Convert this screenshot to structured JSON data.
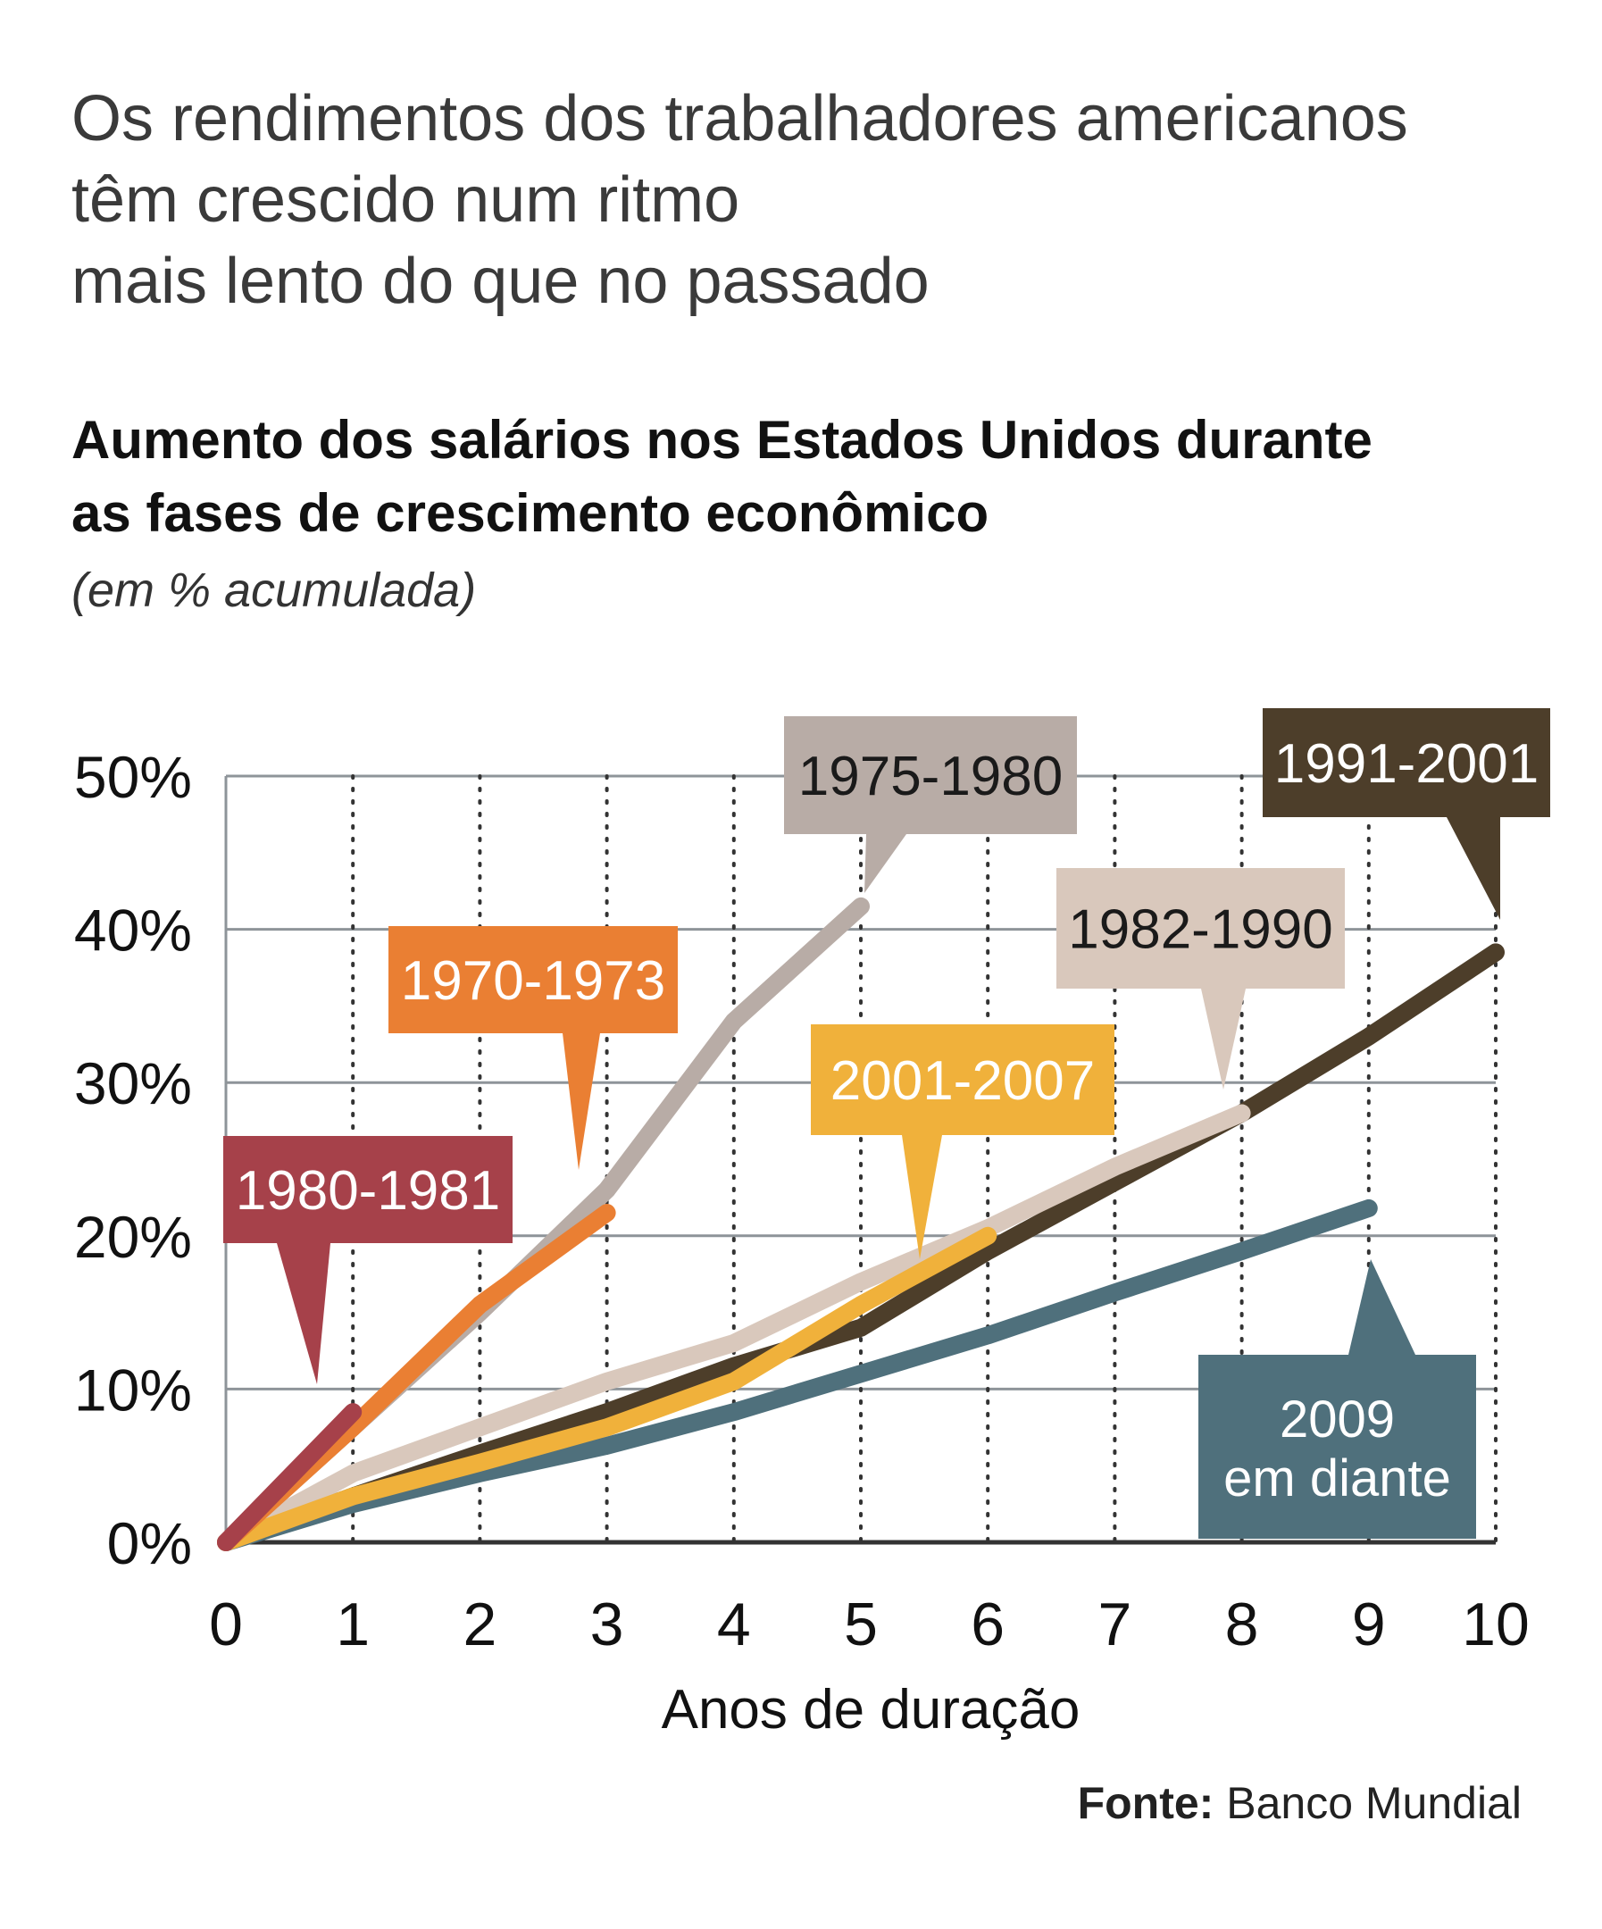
{
  "headline": [
    "Os rendimentos dos trabalhadores americanos",
    "têm crescido num ritmo",
    "mais lento do que no passado"
  ],
  "subtitle": [
    "Aumento dos salários nos Estados Unidos durante",
    "as fases de crescimento econômico"
  ],
  "unit_label": "(em % acumulada)",
  "source": {
    "label": "Fonte:",
    "value": "Banco Mundial"
  },
  "chart_data": {
    "type": "line",
    "title": "Aumento dos salários nos Estados Unidos durante as fases de crescimento econômico",
    "xlabel": "Anos de duração",
    "ylabel": "(em % acumulada)",
    "xlim": [
      0,
      10
    ],
    "ylim": [
      0,
      50
    ],
    "x_ticks": [
      "0",
      "1",
      "2",
      "3",
      "4",
      "5",
      "6",
      "7",
      "8",
      "9",
      "10"
    ],
    "y_ticks": [
      "0%",
      "10%",
      "20%",
      "30%",
      "40%",
      "50%"
    ],
    "grid": true,
    "series": [
      {
        "name": "1975-1980",
        "label_lines": [
          "1975-1980"
        ],
        "color": "#b8aca6",
        "label_bg": "#b8aca6",
        "label_text": "#1a1a1a",
        "x": [
          0,
          1,
          2,
          3,
          4,
          5
        ],
        "y": [
          0,
          7.5,
          15,
          23,
          34,
          41.5
        ]
      },
      {
        "name": "1991-2001",
        "label_lines": [
          "1991-2001"
        ],
        "color": "#4d3e2a",
        "label_bg": "#4d3e2a",
        "label_text": "#ffffff",
        "x": [
          0,
          1,
          2,
          3,
          4,
          5,
          6,
          7,
          8,
          9,
          10
        ],
        "y": [
          0,
          3,
          5.8,
          8.5,
          11.5,
          14,
          19,
          23.5,
          28,
          33,
          38.5
        ]
      },
      {
        "name": "1982-1990",
        "label_lines": [
          "1982-1990"
        ],
        "color": "#d9c8bc",
        "label_bg": "#d9c8bc",
        "label_text": "#1a1a1a",
        "x": [
          0,
          1,
          2,
          3,
          4,
          5,
          6,
          7,
          8
        ],
        "y": [
          0,
          4.5,
          7.5,
          10.5,
          13,
          17,
          20.5,
          24.5,
          28
        ]
      },
      {
        "name": "2009 em diante",
        "label_lines": [
          "2009",
          "em diante"
        ],
        "color": "#4f707c",
        "label_bg": "#4f707c",
        "label_text": "#ffffff",
        "x": [
          0,
          1,
          2,
          3,
          4,
          5,
          6,
          7,
          8,
          9
        ],
        "y": [
          0,
          2.5,
          4.5,
          6.3,
          8.5,
          11,
          13.5,
          16.3,
          19,
          21.8
        ]
      },
      {
        "name": "2001-2007",
        "label_lines": [
          "2001-2007"
        ],
        "color": "#f0b13b",
        "label_bg": "#f0b13b",
        "label_text": "#ffffff",
        "x": [
          0,
          1,
          2,
          3,
          4,
          5,
          6
        ],
        "y": [
          0,
          3,
          5.2,
          7.5,
          10.5,
          15.5,
          20
        ]
      },
      {
        "name": "1970-1973",
        "label_lines": [
          "1970-1973"
        ],
        "color": "#ea7f33",
        "label_bg": "#ea7f33",
        "label_text": "#ffffff",
        "x": [
          0,
          1,
          2,
          3
        ],
        "y": [
          0,
          7.5,
          15.5,
          21.5
        ]
      },
      {
        "name": "1980-1981",
        "label_lines": [
          "1980-1981"
        ],
        "color": "#a6414a",
        "label_bg": "#a6414a",
        "label_text": "#ffffff",
        "x": [
          0,
          1
        ],
        "y": [
          0,
          8.5
        ]
      }
    ]
  }
}
